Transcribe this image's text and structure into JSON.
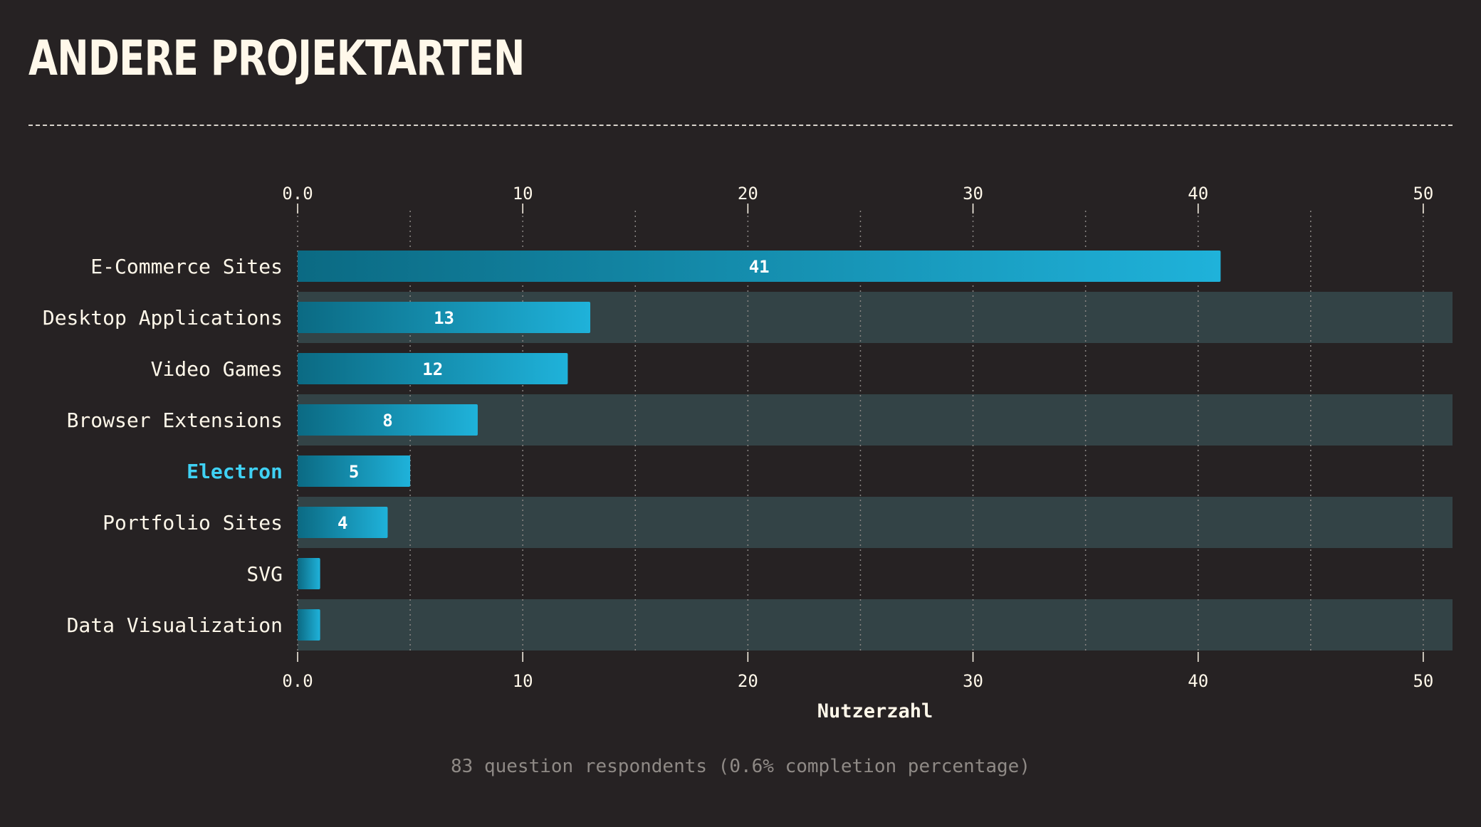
{
  "title": "ANDERE PROJEKTARTEN",
  "footer": "83 question respondents (0.6% completion percentage)",
  "colors": {
    "background": "#262223",
    "stripe": "#334346",
    "bar_start": "#0b6a83",
    "bar_end": "#1fb2da",
    "highlight_label": "#3fd1f4",
    "text": "#fff8ea"
  },
  "chart_data": {
    "type": "bar",
    "orientation": "horizontal",
    "categories": [
      "E-Commerce Sites",
      "Desktop Applications",
      "Video Games",
      "Browser Extensions",
      "Electron",
      "Portfolio Sites",
      "SVG",
      "Data Visualization"
    ],
    "values": [
      41,
      13,
      12,
      8,
      5,
      4,
      1,
      1
    ],
    "data_labels": [
      "41",
      "13",
      "12",
      "8",
      "5",
      "4",
      "",
      ""
    ],
    "highlighted_category": "Electron",
    "xlabel": "Nutzerzahl",
    "xlim": [
      0,
      51.3
    ],
    "x_ticks": [
      0,
      10,
      20,
      30,
      40,
      50
    ],
    "x_tick_labels": [
      "0.0",
      "10",
      "20",
      "30",
      "40",
      "50"
    ],
    "minor_grid_step": 5,
    "grid": true,
    "tick_labels_top": true,
    "tick_labels_bottom": true
  }
}
